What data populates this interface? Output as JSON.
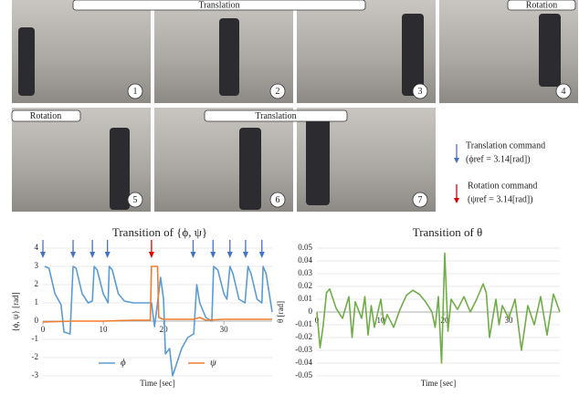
{
  "photos": {
    "banners": [
      "Translation",
      "Rotation",
      "Rotation",
      "Translation"
    ],
    "numbers": [
      "1",
      "2",
      "3",
      "4",
      "5",
      "6",
      "7"
    ]
  },
  "command_legend": {
    "translation": [
      "Translation command",
      "(ϕref = 3.14[rad])"
    ],
    "rotation": [
      "Rotation command",
      "(ψref = 3.14[rad])"
    ]
  },
  "chart_data": [
    {
      "type": "line",
      "title": "Transition of {ϕ, ψ}",
      "x_label": "Time [sec]",
      "y_label": "{ϕ, ψ} [rad]",
      "xlim": [
        0,
        38
      ],
      "ylim": [
        -3,
        4
      ],
      "xticks": [
        0,
        10,
        20,
        30
      ],
      "yticks": [
        -3,
        -2,
        -1,
        0,
        1,
        2,
        3,
        4
      ],
      "grid": true,
      "commands": [
        {
          "color": "#4472c4",
          "x": [
            0,
            5,
            8.2,
            10.7,
            24.9,
            28.2,
            31,
            33.6,
            36.3
          ]
        },
        {
          "color": "#e00000",
          "x": [
            18
          ]
        }
      ],
      "series": [
        {
          "name": "ϕ",
          "color": "#5b9bd5",
          "x": [
            0.3,
            1,
            2,
            3,
            3.5,
            4.5,
            5,
            5.5,
            6.5,
            7.5,
            8.2,
            8.5,
            9,
            10,
            10.8,
            11,
            11.5,
            12.5,
            13.5,
            15,
            17,
            18,
            18.5,
            19,
            19.5,
            20,
            20.3,
            21,
            21.5,
            22,
            23,
            24,
            25,
            25.5,
            26,
            27,
            28,
            28.3,
            29,
            30,
            30.5,
            31,
            31.5,
            32.5,
            33.5,
            34,
            34.5,
            35.5,
            36.3,
            36.5,
            37,
            38
          ],
          "values": [
            3.0,
            2.9,
            1.5,
            0.9,
            -0.6,
            -0.7,
            3.0,
            2.9,
            1.5,
            1.0,
            1.1,
            3.0,
            2.8,
            1.5,
            1.0,
            3.0,
            2.8,
            1.5,
            1.1,
            1.0,
            1.0,
            1.0,
            -0.3,
            1.0,
            2.4,
            1.2,
            -1.8,
            -1.5,
            -3.0,
            -2.5,
            -1.5,
            -0.9,
            -0.7,
            2.0,
            1.0,
            0.2,
            0.0,
            3.0,
            2.8,
            1.5,
            1.2,
            3.0,
            2.6,
            1.2,
            1.0,
            3.0,
            2.6,
            1.2,
            1.0,
            3.0,
            2.6,
            0.5
          ]
        },
        {
          "name": "ψ",
          "color": "#ed7d31",
          "x": [
            0,
            5,
            10,
            15,
            17.8,
            18,
            19,
            19.2,
            20,
            25,
            26,
            27,
            30,
            35,
            38
          ],
          "values": [
            -0.05,
            0.0,
            0.0,
            0.05,
            0.05,
            3.0,
            3.0,
            0.2,
            0.1,
            0.1,
            0.2,
            0.05,
            0.1,
            0.1,
            0.1
          ]
        }
      ]
    },
    {
      "type": "line",
      "title": "Transition of θ",
      "x_label": "Time [sec]",
      "y_label": "θ [rad]",
      "xlim": [
        0,
        38
      ],
      "ylim": [
        -0.05,
        0.05
      ],
      "xticks": [
        0,
        10,
        20,
        30
      ],
      "yticks": [
        -0.05,
        -0.04,
        -0.03,
        -0.02,
        -0.01,
        0,
        0.01,
        0.02,
        0.03,
        0.04,
        0.05
      ],
      "grid": true,
      "series": [
        {
          "color": "#70ad47",
          "x": [
            0,
            0.5,
            1,
            1.5,
            2,
            3,
            4,
            5,
            5.5,
            6,
            7,
            7.5,
            8,
            8.5,
            9,
            10,
            10.5,
            11,
            12,
            13,
            14,
            15,
            16,
            17,
            18,
            18.5,
            19,
            19.5,
            20,
            20.5,
            21,
            22,
            23,
            24,
            25,
            26,
            26.5,
            27,
            28,
            28.5,
            29,
            30,
            31,
            32,
            33,
            34,
            35,
            36,
            37,
            38
          ],
          "values": [
            0,
            -0.028,
            -0.01,
            0.015,
            0.018,
            0.003,
            -0.005,
            0.012,
            -0.02,
            0.008,
            -0.005,
            0.012,
            -0.018,
            0.005,
            -0.012,
            0.01,
            -0.01,
            -0.002,
            -0.012,
            0.002,
            0.013,
            0.017,
            0.014,
            0.008,
            0.0,
            -0.012,
            0.012,
            -0.04,
            0.046,
            -0.015,
            0.01,
            0.002,
            0.012,
            0.0,
            0.01,
            0.022,
            0.015,
            -0.02,
            0.01,
            -0.01,
            0.005,
            -0.005,
            0.01,
            -0.03,
            0.005,
            -0.01,
            0.012,
            -0.018,
            0.014,
            0.0
          ]
        }
      ]
    }
  ]
}
